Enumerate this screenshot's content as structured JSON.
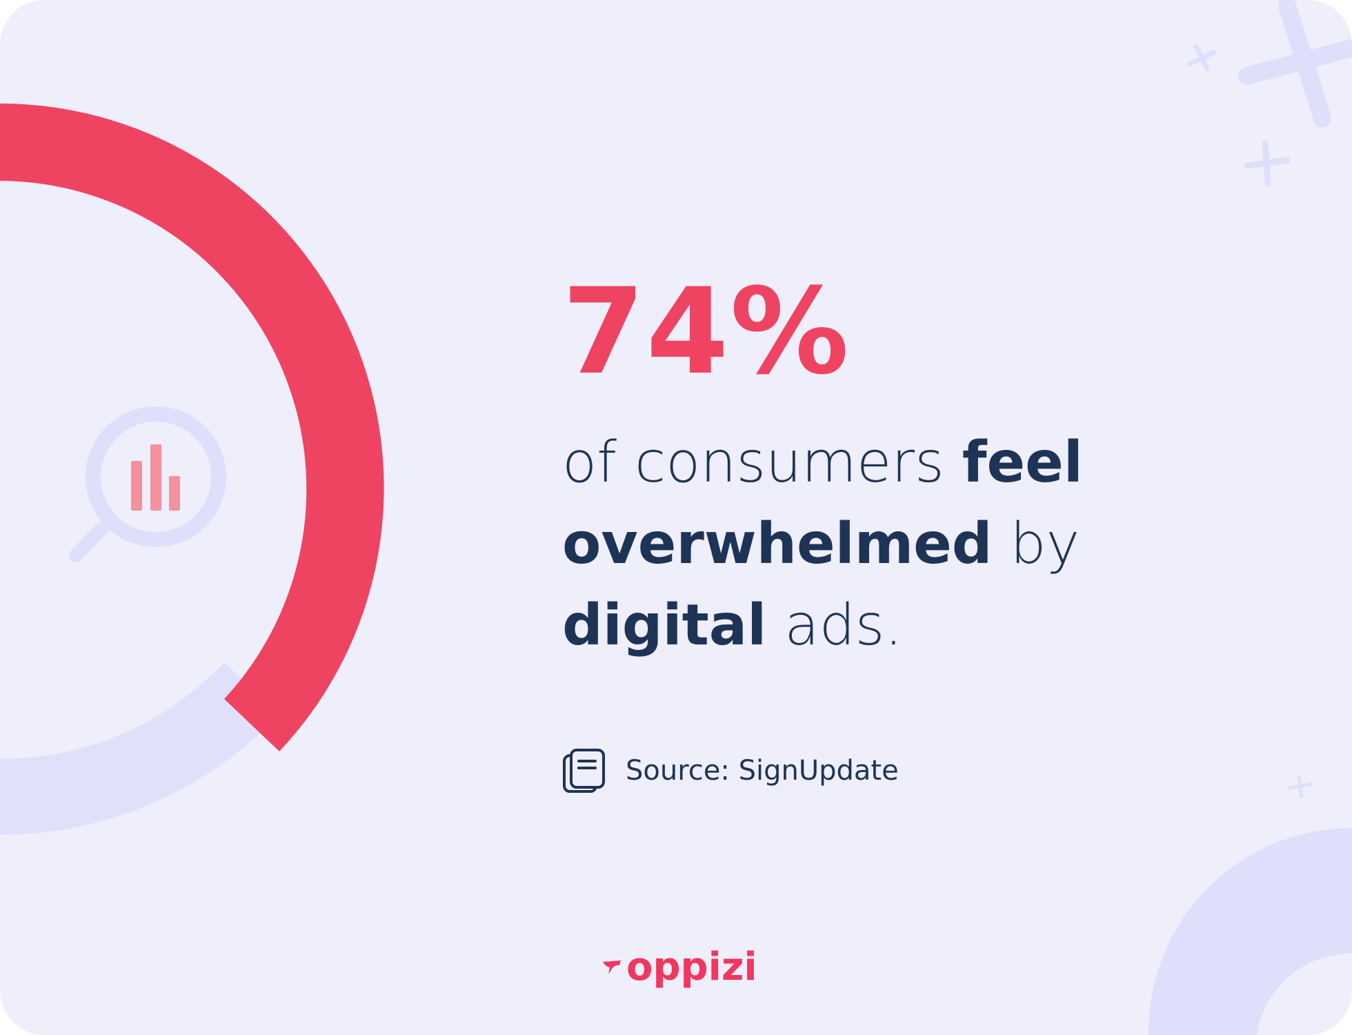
{
  "colors": {
    "background": "#efeefb",
    "accent": "#ee4462",
    "ring_track": "#e1e0fa",
    "text": "#1e3456",
    "brand": "#f2365f",
    "decor": "#e0dffb"
  },
  "ring": {
    "percent_filled": 74
  },
  "stat": {
    "value": "74%"
  },
  "description": {
    "line1_regular": "of consumers ",
    "line1_bold": "feel",
    "line2_bold": "overwhelmed",
    "line2_regular": " by",
    "line3_bold": "digital",
    "line3_regular": " ads."
  },
  "source": {
    "label": "Source: SignUpdate",
    "icon": "document-stack-icon"
  },
  "icons": {
    "center": "magnifier-bar-chart-icon",
    "sparkles": "sparkle-icon"
  },
  "brand": {
    "name": "oppizi"
  }
}
